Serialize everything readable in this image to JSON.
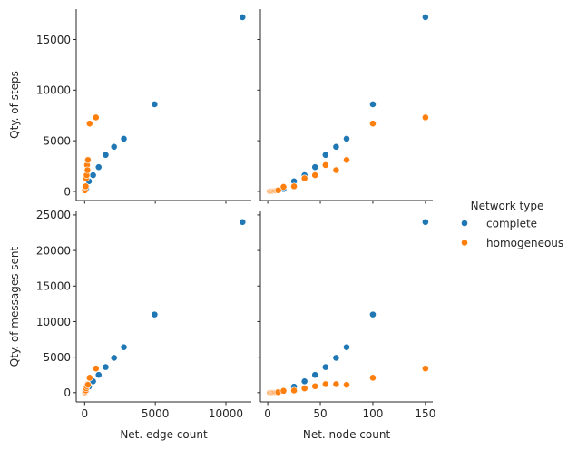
{
  "chart_data": {
    "type": "scatter",
    "layout": "pairgrid",
    "legend": {
      "title": "Network type",
      "placement": "right",
      "entries": [
        {
          "name": "complete",
          "color": "#1f77b4"
        },
        {
          "name": "homogeneous",
          "color": "#ff7f0e"
        }
      ]
    },
    "x_axes": [
      {
        "label": "Net. edge count",
        "lim": [
          -600,
          11800
        ],
        "ticks": [
          0,
          5000,
          10000
        ],
        "tick_labels": [
          "0",
          "5000",
          "10000"
        ]
      },
      {
        "label": "Net. node count",
        "lim": [
          -7,
          157
        ],
        "ticks": [
          0,
          50,
          100,
          150
        ],
        "tick_labels": [
          "0",
          "50",
          "100",
          "150"
        ]
      }
    ],
    "y_axes": [
      {
        "label": "Qty. of steps",
        "lim": [
          -900,
          18000
        ],
        "ticks": [
          0,
          5000,
          10000,
          15000
        ],
        "tick_labels": [
          "0",
          "5000",
          "10000",
          "15000"
        ]
      },
      {
        "label": "Qty. of messages sent",
        "lim": [
          -1300,
          25500
        ],
        "ticks": [
          0,
          5000,
          10000,
          15000,
          20000,
          25000
        ],
        "tick_labels": [
          "0",
          "5000",
          "10000",
          "15000",
          "20000",
          "25000"
        ]
      }
    ],
    "series": [
      {
        "name": "complete",
        "color": "#1f77b4",
        "points": [
          {
            "nodes": 2,
            "edges": 1,
            "steps": 3,
            "messages": 2
          },
          {
            "nodes": 3,
            "edges": 3,
            "steps": 8,
            "messages": 6
          },
          {
            "nodes": 4,
            "edges": 6,
            "steps": 15,
            "messages": 12
          },
          {
            "nodes": 5,
            "edges": 10,
            "steps": 25,
            "messages": 20
          },
          {
            "nodes": 6,
            "edges": 15,
            "steps": 35,
            "messages": 30
          },
          {
            "nodes": 7,
            "edges": 21,
            "steps": 50,
            "messages": 42
          },
          {
            "nodes": 8,
            "edges": 28,
            "steps": 65,
            "messages": 56
          },
          {
            "nodes": 9,
            "edges": 36,
            "steps": 80,
            "messages": 72
          },
          {
            "nodes": 10,
            "edges": 45,
            "steps": 100,
            "messages": 90
          },
          {
            "nodes": 15,
            "edges": 105,
            "steps": 240,
            "messages": 230
          },
          {
            "nodes": 25,
            "edges": 300,
            "steps": 1000,
            "messages": 850
          },
          {
            "nodes": 35,
            "edges": 595,
            "steps": 1600,
            "messages": 1600
          },
          {
            "nodes": 45,
            "edges": 990,
            "steps": 2400,
            "messages": 2500
          },
          {
            "nodes": 55,
            "edges": 1485,
            "steps": 3600,
            "messages": 3600
          },
          {
            "nodes": 65,
            "edges": 2080,
            "steps": 4400,
            "messages": 4900
          },
          {
            "nodes": 75,
            "edges": 2775,
            "steps": 5200,
            "messages": 6400
          },
          {
            "nodes": 100,
            "edges": 4950,
            "steps": 8600,
            "messages": 11000
          },
          {
            "nodes": 150,
            "edges": 11175,
            "steps": 17200,
            "messages": 24000
          }
        ]
      },
      {
        "name": "homogeneous",
        "color": "#ff7f0e",
        "points": [
          {
            "nodes": 2,
            "edges": 2,
            "steps": 10,
            "messages": 5
          },
          {
            "nodes": 3,
            "edges": 5,
            "steps": 15,
            "messages": 10
          },
          {
            "nodes": 4,
            "edges": 8,
            "steps": 20,
            "messages": 15
          },
          {
            "nodes": 5,
            "edges": 10,
            "steps": 30,
            "messages": 20
          },
          {
            "nodes": 6,
            "edges": 12,
            "steps": 40,
            "messages": 25
          },
          {
            "nodes": 7,
            "edges": 14,
            "steps": 55,
            "messages": 30
          },
          {
            "nodes": 8,
            "edges": 16,
            "steps": 70,
            "messages": 40
          },
          {
            "nodes": 9,
            "edges": 18,
            "steps": 85,
            "messages": 50
          },
          {
            "nodes": 10,
            "edges": 20,
            "steps": 100,
            "messages": 60
          },
          {
            "nodes": 15,
            "edges": 40,
            "steps": 450,
            "messages": 250
          },
          {
            "nodes": 25,
            "edges": 75,
            "steps": 500,
            "messages": 300
          },
          {
            "nodes": 35,
            "edges": 100,
            "steps": 1300,
            "messages": 600
          },
          {
            "nodes": 45,
            "edges": 140,
            "steps": 1600,
            "messages": 900
          },
          {
            "nodes": 55,
            "edges": 170,
            "steps": 2600,
            "messages": 1200
          },
          {
            "nodes": 65,
            "edges": 200,
            "steps": 2100,
            "messages": 1200
          },
          {
            "nodes": 75,
            "edges": 230,
            "steps": 3100,
            "messages": 1100
          },
          {
            "nodes": 100,
            "edges": 350,
            "steps": 6700,
            "messages": 2100
          },
          {
            "nodes": 150,
            "edges": 800,
            "steps": 7300,
            "messages": 3400
          }
        ]
      }
    ]
  }
}
